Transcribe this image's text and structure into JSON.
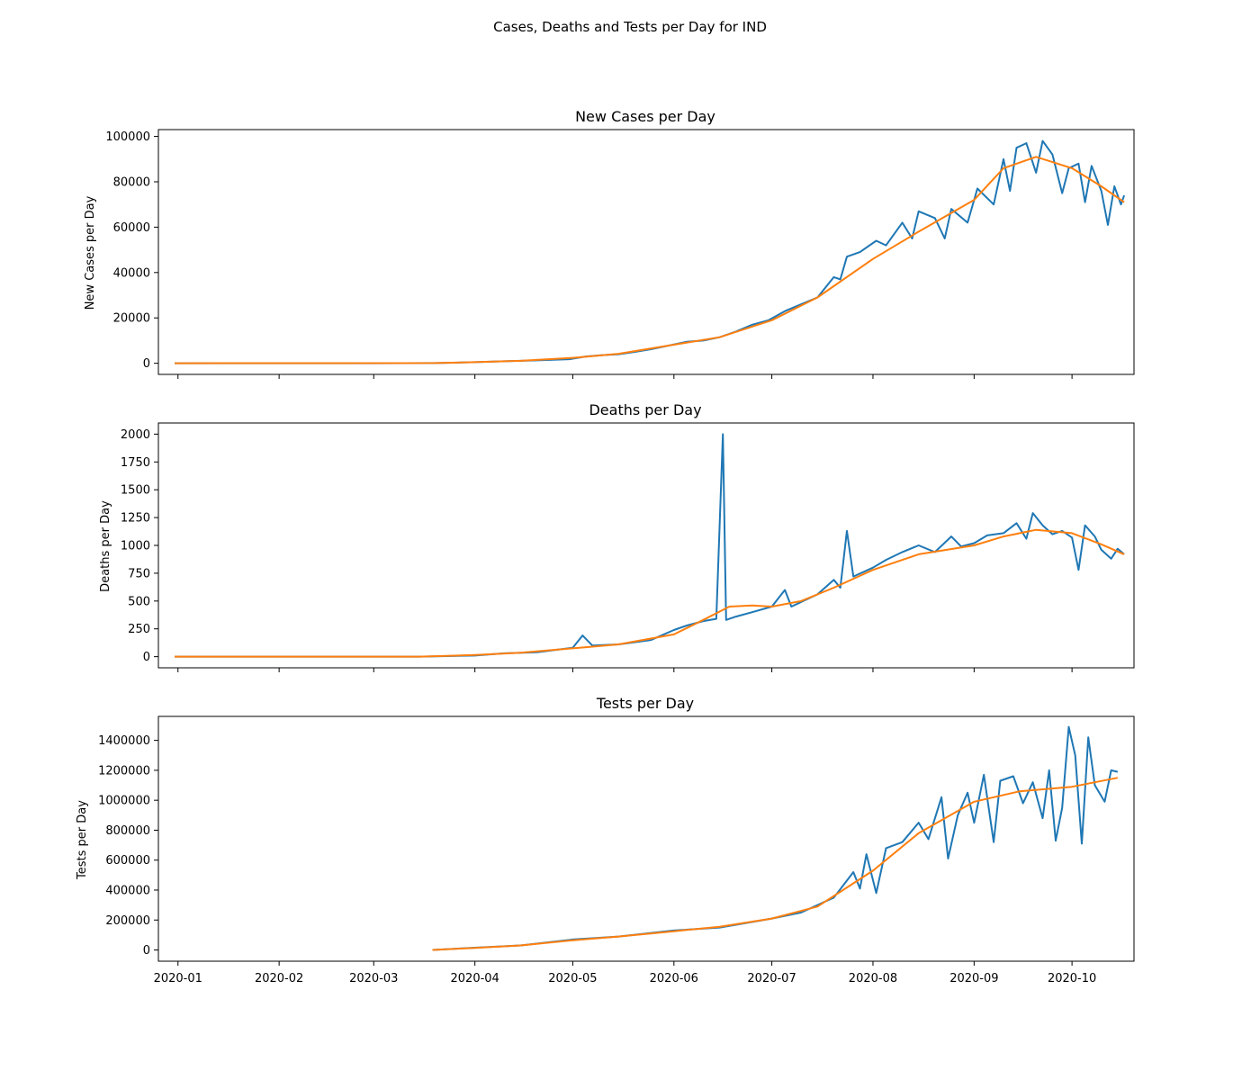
{
  "suptitle": "Cases, Deaths and Tests per Day for IND",
  "chart_data": [
    {
      "type": "line",
      "title": "New Cases per Day",
      "ylabel": "New Cases per Day",
      "xlabel": "",
      "x_range": [
        "2019-12-26",
        "2020-10-20"
      ],
      "xticks": [
        "2020-01",
        "2020-02",
        "2020-03",
        "2020-04",
        "2020-05",
        "2020-06",
        "2020-07",
        "2020-08",
        "2020-09",
        "2020-10"
      ],
      "xtick_labels_shown": false,
      "ylim": [
        -4900,
        103000
      ],
      "yticks": [
        0,
        20000,
        40000,
        60000,
        80000,
        100000
      ],
      "grid": false,
      "series": [
        {
          "color": "#1f77b4",
          "points": [
            [
              "2019-12-31",
              0
            ],
            [
              "2020-03-01",
              0
            ],
            [
              "2020-03-20",
              100
            ],
            [
              "2020-04-01",
              500
            ],
            [
              "2020-04-10",
              900
            ],
            [
              "2020-04-20",
              1300
            ],
            [
              "2020-04-30",
              1800
            ],
            [
              "2020-05-05",
              3000
            ],
            [
              "2020-05-10",
              3600
            ],
            [
              "2020-05-15",
              4000
            ],
            [
              "2020-05-20",
              5000
            ],
            [
              "2020-05-25",
              6200
            ],
            [
              "2020-05-31",
              8000
            ],
            [
              "2020-06-05",
              9500
            ],
            [
              "2020-06-10",
              10000
            ],
            [
              "2020-06-15",
              11500
            ],
            [
              "2020-06-20",
              14000
            ],
            [
              "2020-06-25",
              17000
            ],
            [
              "2020-06-30",
              19000
            ],
            [
              "2020-07-05",
              23000
            ],
            [
              "2020-07-10",
              26000
            ],
            [
              "2020-07-15",
              29000
            ],
            [
              "2020-07-20",
              38000
            ],
            [
              "2020-07-22",
              37000
            ],
            [
              "2020-07-24",
              47000
            ],
            [
              "2020-07-28",
              49000
            ],
            [
              "2020-08-02",
              54000
            ],
            [
              "2020-08-05",
              52000
            ],
            [
              "2020-08-10",
              62000
            ],
            [
              "2020-08-13",
              55000
            ],
            [
              "2020-08-15",
              67000
            ],
            [
              "2020-08-20",
              64000
            ],
            [
              "2020-08-23",
              55000
            ],
            [
              "2020-08-25",
              68000
            ],
            [
              "2020-08-30",
              62000
            ],
            [
              "2020-09-02",
              77000
            ],
            [
              "2020-09-07",
              70000
            ],
            [
              "2020-09-10",
              90000
            ],
            [
              "2020-09-12",
              76000
            ],
            [
              "2020-09-14",
              95000
            ],
            [
              "2020-09-17",
              97000
            ],
            [
              "2020-09-20",
              84000
            ],
            [
              "2020-09-22",
              98000
            ],
            [
              "2020-09-25",
              92000
            ],
            [
              "2020-09-28",
              75000
            ],
            [
              "2020-09-30",
              86000
            ],
            [
              "2020-10-03",
              88000
            ],
            [
              "2020-10-05",
              71000
            ],
            [
              "2020-10-07",
              87000
            ],
            [
              "2020-10-10",
              76000
            ],
            [
              "2020-10-12",
              61000
            ],
            [
              "2020-10-14",
              78000
            ],
            [
              "2020-10-16",
              70000
            ],
            [
              "2020-10-17",
              74000
            ]
          ]
        },
        {
          "color": "#ff7f0e",
          "points": [
            [
              "2019-12-31",
              0
            ],
            [
              "2020-03-20",
              100
            ],
            [
              "2020-04-01",
              500
            ],
            [
              "2020-04-15",
              1100
            ],
            [
              "2020-05-01",
              2400
            ],
            [
              "2020-05-15",
              4200
            ],
            [
              "2020-06-01",
              8200
            ],
            [
              "2020-06-15",
              11500
            ],
            [
              "2020-07-01",
              19000
            ],
            [
              "2020-07-15",
              29000
            ],
            [
              "2020-08-01",
              46000
            ],
            [
              "2020-08-15",
              58000
            ],
            [
              "2020-09-01",
              72000
            ],
            [
              "2020-09-10",
              86000
            ],
            [
              "2020-09-20",
              91000
            ],
            [
              "2020-10-01",
              86000
            ],
            [
              "2020-10-10",
              78000
            ],
            [
              "2020-10-17",
              71000
            ]
          ]
        }
      ]
    },
    {
      "type": "line",
      "title": "Deaths per Day",
      "ylabel": "Deaths per Day",
      "xlabel": "",
      "x_range": [
        "2019-12-26",
        "2020-10-20"
      ],
      "xticks": [
        "2020-01",
        "2020-02",
        "2020-03",
        "2020-04",
        "2020-05",
        "2020-06",
        "2020-07",
        "2020-08",
        "2020-09",
        "2020-10"
      ],
      "xtick_labels_shown": false,
      "ylim": [
        -100,
        2100
      ],
      "yticks": [
        0,
        250,
        500,
        750,
        1000,
        1250,
        1500,
        1750,
        2000
      ],
      "grid": false,
      "series": [
        {
          "color": "#1f77b4",
          "points": [
            [
              "2019-12-31",
              0
            ],
            [
              "2020-03-15",
              0
            ],
            [
              "2020-04-01",
              10
            ],
            [
              "2020-04-10",
              30
            ],
            [
              "2020-04-20",
              40
            ],
            [
              "2020-05-01",
              80
            ],
            [
              "2020-05-04",
              190
            ],
            [
              "2020-05-07",
              100
            ],
            [
              "2020-05-15",
              110
            ],
            [
              "2020-05-25",
              150
            ],
            [
              "2020-06-01",
              240
            ],
            [
              "2020-06-05",
              280
            ],
            [
              "2020-06-10",
              320
            ],
            [
              "2020-06-14",
              340
            ],
            [
              "2020-06-16",
              2000
            ],
            [
              "2020-06-17",
              330
            ],
            [
              "2020-06-20",
              360
            ],
            [
              "2020-06-25",
              400
            ],
            [
              "2020-07-01",
              450
            ],
            [
              "2020-07-05",
              600
            ],
            [
              "2020-07-07",
              450
            ],
            [
              "2020-07-15",
              560
            ],
            [
              "2020-07-20",
              690
            ],
            [
              "2020-07-22",
              620
            ],
            [
              "2020-07-24",
              1130
            ],
            [
              "2020-07-26",
              720
            ],
            [
              "2020-08-01",
              800
            ],
            [
              "2020-08-05",
              870
            ],
            [
              "2020-08-10",
              940
            ],
            [
              "2020-08-15",
              1000
            ],
            [
              "2020-08-20",
              940
            ],
            [
              "2020-08-25",
              1080
            ],
            [
              "2020-08-28",
              990
            ],
            [
              "2020-09-01",
              1020
            ],
            [
              "2020-09-05",
              1090
            ],
            [
              "2020-09-10",
              1110
            ],
            [
              "2020-09-14",
              1200
            ],
            [
              "2020-09-17",
              1060
            ],
            [
              "2020-09-19",
              1290
            ],
            [
              "2020-09-22",
              1180
            ],
            [
              "2020-09-25",
              1100
            ],
            [
              "2020-09-28",
              1130
            ],
            [
              "2020-10-01",
              1070
            ],
            [
              "2020-10-03",
              780
            ],
            [
              "2020-10-05",
              1180
            ],
            [
              "2020-10-08",
              1080
            ],
            [
              "2020-10-10",
              960
            ],
            [
              "2020-10-13",
              880
            ],
            [
              "2020-10-15",
              970
            ],
            [
              "2020-10-17",
              920
            ]
          ]
        },
        {
          "color": "#ff7f0e",
          "points": [
            [
              "2019-12-31",
              0
            ],
            [
              "2020-03-15",
              0
            ],
            [
              "2020-04-01",
              15
            ],
            [
              "2020-04-15",
              35
            ],
            [
              "2020-05-01",
              75
            ],
            [
              "2020-05-15",
              110
            ],
            [
              "2020-06-01",
              200
            ],
            [
              "2020-06-10",
              330
            ],
            [
              "2020-06-18",
              450
            ],
            [
              "2020-06-25",
              460
            ],
            [
              "2020-07-01",
              450
            ],
            [
              "2020-07-10",
              500
            ],
            [
              "2020-07-20",
              620
            ],
            [
              "2020-08-01",
              780
            ],
            [
              "2020-08-15",
              920
            ],
            [
              "2020-09-01",
              1000
            ],
            [
              "2020-09-10",
              1080
            ],
            [
              "2020-09-20",
              1140
            ],
            [
              "2020-10-01",
              1110
            ],
            [
              "2020-10-10",
              1010
            ],
            [
              "2020-10-17",
              920
            ]
          ]
        }
      ]
    },
    {
      "type": "line",
      "title": "Tests per Day",
      "ylabel": "Tests per Day",
      "xlabel": "",
      "x_range": [
        "2019-12-26",
        "2020-10-20"
      ],
      "xticks": [
        "2020-01",
        "2020-02",
        "2020-03",
        "2020-04",
        "2020-05",
        "2020-06",
        "2020-07",
        "2020-08",
        "2020-09",
        "2020-10"
      ],
      "xtick_labels_shown": true,
      "ylim": [
        -75000,
        1560000
      ],
      "yticks": [
        0,
        200000,
        400000,
        600000,
        800000,
        1000000,
        1200000,
        1400000
      ],
      "grid": false,
      "series": [
        {
          "color": "#1f77b4",
          "points": [
            [
              "2020-03-19",
              0
            ],
            [
              "2020-04-01",
              15000
            ],
            [
              "2020-04-15",
              30000
            ],
            [
              "2020-05-01",
              70000
            ],
            [
              "2020-05-15",
              90000
            ],
            [
              "2020-06-01",
              130000
            ],
            [
              "2020-06-15",
              150000
            ],
            [
              "2020-07-01",
              210000
            ],
            [
              "2020-07-10",
              250000
            ],
            [
              "2020-07-15",
              300000
            ],
            [
              "2020-07-20",
              350000
            ],
            [
              "2020-07-26",
              520000
            ],
            [
              "2020-07-28",
              410000
            ],
            [
              "2020-07-30",
              640000
            ],
            [
              "2020-08-02",
              380000
            ],
            [
              "2020-08-05",
              680000
            ],
            [
              "2020-08-10",
              720000
            ],
            [
              "2020-08-15",
              850000
            ],
            [
              "2020-08-18",
              740000
            ],
            [
              "2020-08-22",
              1020000
            ],
            [
              "2020-08-24",
              610000
            ],
            [
              "2020-08-27",
              900000
            ],
            [
              "2020-08-30",
              1050000
            ],
            [
              "2020-09-01",
              850000
            ],
            [
              "2020-09-04",
              1170000
            ],
            [
              "2020-09-07",
              720000
            ],
            [
              "2020-09-09",
              1130000
            ],
            [
              "2020-09-13",
              1160000
            ],
            [
              "2020-09-16",
              980000
            ],
            [
              "2020-09-19",
              1120000
            ],
            [
              "2020-09-22",
              880000
            ],
            [
              "2020-09-24",
              1200000
            ],
            [
              "2020-09-26",
              730000
            ],
            [
              "2020-09-28",
              950000
            ],
            [
              "2020-09-30",
              1490000
            ],
            [
              "2020-10-02",
              1300000
            ],
            [
              "2020-10-04",
              710000
            ],
            [
              "2020-10-06",
              1420000
            ],
            [
              "2020-10-08",
              1100000
            ],
            [
              "2020-10-11",
              990000
            ],
            [
              "2020-10-13",
              1200000
            ],
            [
              "2020-10-15",
              1190000
            ]
          ]
        },
        {
          "color": "#ff7f0e",
          "points": [
            [
              "2020-03-19",
              0
            ],
            [
              "2020-04-01",
              14000
            ],
            [
              "2020-04-15",
              30000
            ],
            [
              "2020-05-01",
              65000
            ],
            [
              "2020-05-15",
              90000
            ],
            [
              "2020-06-01",
              125000
            ],
            [
              "2020-06-15",
              155000
            ],
            [
              "2020-07-01",
              210000
            ],
            [
              "2020-07-15",
              290000
            ],
            [
              "2020-08-01",
              530000
            ],
            [
              "2020-08-15",
              780000
            ],
            [
              "2020-09-01",
              990000
            ],
            [
              "2020-09-15",
              1060000
            ],
            [
              "2020-10-01",
              1090000
            ],
            [
              "2020-10-15",
              1150000
            ]
          ]
        }
      ]
    }
  ]
}
